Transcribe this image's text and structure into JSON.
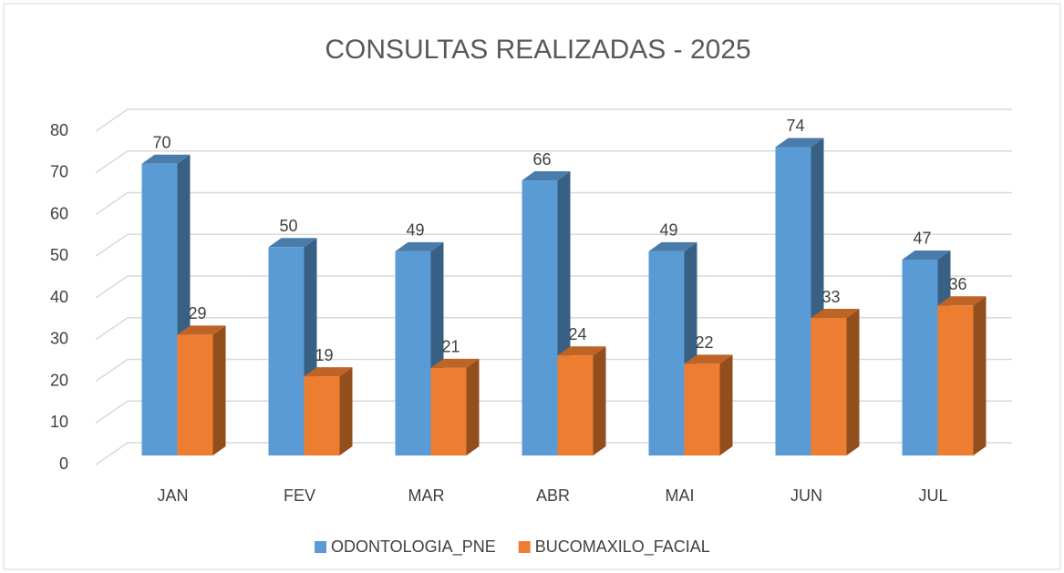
{
  "chart_data": {
    "type": "bar3d",
    "title": "CONSULTAS REALIZADAS - 2025",
    "categories": [
      "JAN",
      "FEV",
      "MAR",
      "ABR",
      "MAI",
      "JUN",
      "JUL"
    ],
    "series": [
      {
        "name": "ODONTOLOGIA_PNE",
        "color": "#5b9bd5",
        "values": [
          70,
          50,
          49,
          66,
          49,
          74,
          47
        ]
      },
      {
        "name": "BUCOMAXILO_FACIAL",
        "color": "#ed7d31",
        "values": [
          29,
          19,
          21,
          24,
          22,
          33,
          36
        ]
      }
    ],
    "ylim": [
      0,
      80
    ],
    "yticks": [
      0,
      10,
      20,
      30,
      40,
      50,
      60,
      70,
      80
    ],
    "grid": true,
    "legend": "bottom"
  }
}
